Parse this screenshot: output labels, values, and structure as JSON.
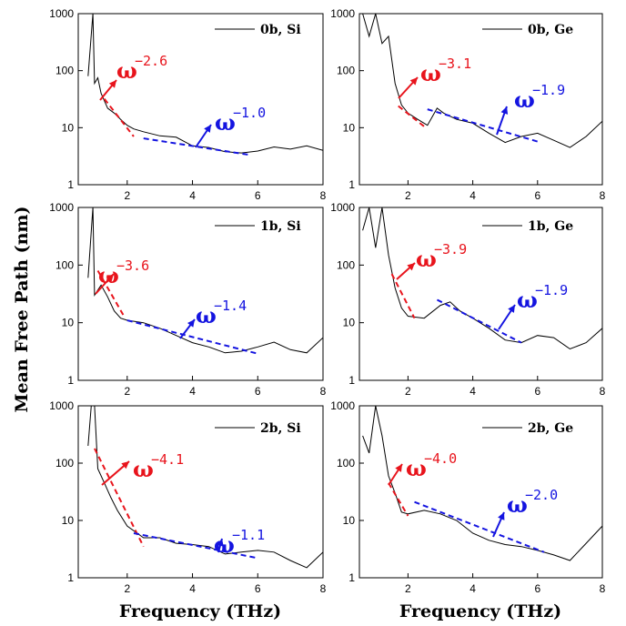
{
  "figure": {
    "ylabel": "Mean Free Path (nm)",
    "xlabel": "Frequency (THz)",
    "xticks": [
      "2",
      "4",
      "6",
      "8"
    ],
    "yticks": [
      "1",
      "10",
      "100",
      "1000"
    ],
    "colors": {
      "data": "#000000",
      "low_fit": "#e8141c",
      "high_fit": "#1414e0"
    }
  },
  "chart_data": [
    {
      "type": "line",
      "panel": "top-left",
      "legend": "0b, Si",
      "xlim": [
        0.5,
        8
      ],
      "ylim": [
        1,
        1000
      ],
      "yscale": "log",
      "series": [
        {
          "values": [
            [
              0.8,
              80
            ],
            [
              0.95,
              1000
            ],
            [
              1.0,
              60
            ],
            [
              1.1,
              75
            ],
            [
              1.2,
              40
            ],
            [
              1.4,
              22
            ],
            [
              1.6,
              18
            ],
            [
              1.8,
              14
            ],
            [
              2.0,
              11
            ],
            [
              2.2,
              9.5
            ],
            [
              2.5,
              8.5
            ],
            [
              3.0,
              7.2
            ],
            [
              3.5,
              6.8
            ],
            [
              4.0,
              4.8
            ],
            [
              4.5,
              4.5
            ],
            [
              5.0,
              3.8
            ],
            [
              5.5,
              3.6
            ],
            [
              6.0,
              3.9
            ],
            [
              6.5,
              4.6
            ],
            [
              7.0,
              4.2
            ],
            [
              7.5,
              4.8
            ],
            [
              8.0,
              4.0
            ]
          ]
        }
      ],
      "fits": [
        {
          "label": "ω",
          "exponent": "−2.6",
          "x": [
            1.3,
            2.2
          ],
          "y": [
            32,
            7
          ]
        },
        {
          "label": "ω",
          "exponent": "−1.0",
          "x": [
            2.5,
            5.8
          ],
          "y": [
            6.5,
            3.3
          ]
        }
      ]
    },
    {
      "type": "line",
      "panel": "top-right",
      "legend": "0b, Ge",
      "xlim": [
        0.5,
        8
      ],
      "ylim": [
        1,
        1000
      ],
      "yscale": "log",
      "series": [
        {
          "values": [
            [
              0.6,
              1000
            ],
            [
              0.8,
              400
            ],
            [
              1.0,
              1000
            ],
            [
              1.2,
              300
            ],
            [
              1.4,
              400
            ],
            [
              1.6,
              60
            ],
            [
              1.8,
              25
            ],
            [
              2.0,
              18
            ],
            [
              2.3,
              14
            ],
            [
              2.6,
              11
            ],
            [
              2.9,
              22
            ],
            [
              3.1,
              18
            ],
            [
              3.5,
              14
            ],
            [
              4.0,
              12
            ],
            [
              4.5,
              8
            ],
            [
              5.0,
              5.5
            ],
            [
              5.5,
              7
            ],
            [
              6.0,
              8
            ],
            [
              6.5,
              6
            ],
            [
              7.0,
              4.5
            ],
            [
              7.5,
              7
            ],
            [
              8.0,
              13
            ]
          ]
        }
      ],
      "fits": [
        {
          "label": "ω",
          "exponent": "−3.1",
          "x": [
            1.7,
            2.5
          ],
          "y": [
            24,
            10.5
          ]
        },
        {
          "label": "ω",
          "exponent": "−1.9",
          "x": [
            2.6,
            6.1
          ],
          "y": [
            21,
            5.5
          ]
        }
      ]
    },
    {
      "type": "line",
      "panel": "middle-left",
      "legend": "1b, Si",
      "xlim": [
        0.5,
        8
      ],
      "ylim": [
        1,
        1000
      ],
      "yscale": "log",
      "series": [
        {
          "values": [
            [
              0.8,
              60
            ],
            [
              0.95,
              1000
            ],
            [
              1.0,
              30
            ],
            [
              1.2,
              45
            ],
            [
              1.4,
              28
            ],
            [
              1.6,
              16
            ],
            [
              1.8,
              12
            ],
            [
              2.0,
              11
            ],
            [
              2.5,
              10
            ],
            [
              3.0,
              8
            ],
            [
              3.5,
              6
            ],
            [
              4.0,
              4.5
            ],
            [
              4.5,
              3.8
            ],
            [
              5.0,
              3.0
            ],
            [
              5.5,
              3.2
            ],
            [
              6.0,
              3.8
            ],
            [
              6.5,
              4.6
            ],
            [
              7.0,
              3.4
            ],
            [
              7.5,
              3.0
            ],
            [
              8.0,
              5.5
            ]
          ]
        }
      ],
      "fits": [
        {
          "label": "ω",
          "exponent": "−3.6",
          "x": [
            1.1,
            1.9
          ],
          "y": [
            80,
            13
          ]
        },
        {
          "label": "ω",
          "exponent": "−1.4",
          "x": [
            2.0,
            6.0
          ],
          "y": [
            11,
            2.9
          ]
        }
      ]
    },
    {
      "type": "line",
      "panel": "middle-right",
      "legend": "1b, Ge",
      "xlim": [
        0.5,
        8
      ],
      "ylim": [
        1,
        1000
      ],
      "yscale": "log",
      "series": [
        {
          "values": [
            [
              0.6,
              400
            ],
            [
              0.8,
              1000
            ],
            [
              1.0,
              200
            ],
            [
              1.2,
              1000
            ],
            [
              1.4,
              150
            ],
            [
              1.6,
              40
            ],
            [
              1.8,
              18
            ],
            [
              2.0,
              13
            ],
            [
              2.5,
              12
            ],
            [
              3.0,
              20
            ],
            [
              3.3,
              23
            ],
            [
              3.6,
              16
            ],
            [
              4.0,
              12
            ],
            [
              4.5,
              8
            ],
            [
              5.0,
              5
            ],
            [
              5.5,
              4.5
            ],
            [
              6.0,
              6
            ],
            [
              6.5,
              5.5
            ],
            [
              7.0,
              3.5
            ],
            [
              7.5,
              4.5
            ],
            [
              8.0,
              8
            ]
          ]
        }
      ],
      "fits": [
        {
          "label": "ω",
          "exponent": "−3.9",
          "x": [
            1.5,
            2.2
          ],
          "y": [
            70,
            12
          ]
        },
        {
          "label": "ω",
          "exponent": "−1.9",
          "x": [
            2.9,
            5.5
          ],
          "y": [
            25,
            4.5
          ]
        }
      ]
    },
    {
      "type": "line",
      "panel": "bottom-left",
      "legend": "2b, Si",
      "xlim": [
        0.5,
        8
      ],
      "ylim": [
        1,
        1000
      ],
      "yscale": "log",
      "series": [
        {
          "values": [
            [
              0.8,
              200
            ],
            [
              0.9,
              1000
            ],
            [
              1.0,
              1000
            ],
            [
              1.1,
              80
            ],
            [
              1.3,
              45
            ],
            [
              1.5,
              25
            ],
            [
              1.7,
              15
            ],
            [
              2.0,
              8
            ],
            [
              2.5,
              5
            ],
            [
              3.0,
              5
            ],
            [
              3.5,
              4
            ],
            [
              4.0,
              3.8
            ],
            [
              4.5,
              3.5
            ],
            [
              5.0,
              2.6
            ],
            [
              5.5,
              2.8
            ],
            [
              6.0,
              3.0
            ],
            [
              6.5,
              2.8
            ],
            [
              7.0,
              2.0
            ],
            [
              7.5,
              1.5
            ],
            [
              8.0,
              2.8
            ]
          ]
        }
      ],
      "fits": [
        {
          "label": "ω",
          "exponent": "−4.1",
          "x": [
            1.0,
            2.5
          ],
          "y": [
            180,
            3.5
          ]
        },
        {
          "label": "ω",
          "exponent": "−1.1",
          "x": [
            2.2,
            6.0
          ],
          "y": [
            6,
            2.2
          ]
        }
      ]
    },
    {
      "type": "line",
      "panel": "bottom-right",
      "legend": "2b, Ge",
      "xlim": [
        0.5,
        8
      ],
      "ylim": [
        1,
        1000
      ],
      "yscale": "log",
      "series": [
        {
          "values": [
            [
              0.6,
              300
            ],
            [
              0.8,
              150
            ],
            [
              1.0,
              1000
            ],
            [
              1.2,
              300
            ],
            [
              1.4,
              60
            ],
            [
              1.6,
              30
            ],
            [
              1.8,
              14
            ],
            [
              2.0,
              13
            ],
            [
              2.5,
              15
            ],
            [
              3.0,
              13
            ],
            [
              3.5,
              10
            ],
            [
              4.0,
              6
            ],
            [
              4.5,
              4.5
            ],
            [
              5.0,
              3.8
            ],
            [
              5.5,
              3.5
            ],
            [
              6.0,
              3.0
            ],
            [
              6.5,
              2.5
            ],
            [
              7.0,
              2.0
            ],
            [
              7.5,
              4.0
            ],
            [
              8.0,
              8
            ]
          ]
        }
      ],
      "fits": [
        {
          "label": "ω",
          "exponent": "−4.0",
          "x": [
            1.4,
            2.0
          ],
          "y": [
            45,
            12
          ]
        },
        {
          "label": "ω",
          "exponent": "−2.0",
          "x": [
            2.2,
            6.2
          ],
          "y": [
            21,
            2.8
          ]
        }
      ]
    }
  ]
}
